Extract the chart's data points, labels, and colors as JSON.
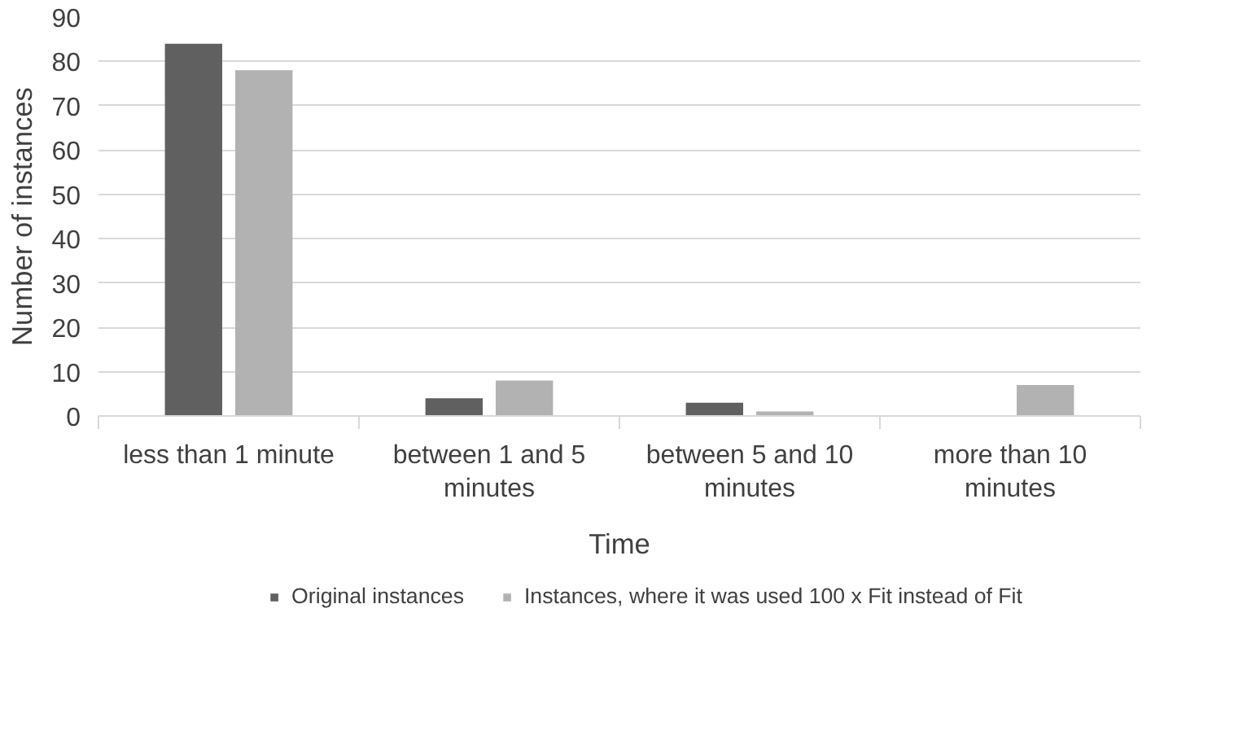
{
  "chart_data": {
    "type": "bar",
    "xlabel": "Time",
    "ylabel": "Number of instances",
    "categories": [
      "less than 1 minute",
      "between 1 and 5\nminutes",
      "between 5 and 10\nminutes",
      "more than 10\nminutes"
    ],
    "series": [
      {
        "name": "Original instances",
        "color": "#606060",
        "values": [
          84,
          4,
          3,
          0
        ]
      },
      {
        "name": "Instances, where it was used 100 x Fit instead of Fit",
        "color": "#b2b2b2",
        "values": [
          78,
          8,
          1,
          7
        ]
      }
    ],
    "ylim": [
      0,
      90
    ],
    "yticks": [
      0,
      10,
      20,
      30,
      40,
      50,
      60,
      70,
      80,
      90
    ],
    "grid": "y",
    "legend": "bottom"
  }
}
